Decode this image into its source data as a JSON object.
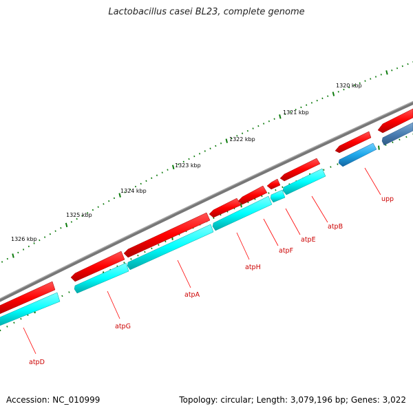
{
  "title": "Lactobacillus casei BL23, complete genome",
  "footer": {
    "accession": "Accession: NC_010999",
    "summary": "Topology: circular; Length: 3,079,196 bp; Genes: 3,022"
  },
  "colors": {
    "backbone": "#777777",
    "gene_red": "#ff0000",
    "gene_red_dark": "#b30000",
    "cds_cyan": "#00ffff",
    "cds_cyan_dark": "#00a0a0",
    "cds_blue": "#1ea7ea",
    "cds_blue_dark": "#1565a0",
    "cds_steel": "#4b7fb3",
    "tick": "#0b7a0b",
    "label": "#cc0000"
  },
  "ruler": [
    {
      "label": "1320 kbp"
    },
    {
      "label": "1321 kbp"
    },
    {
      "label": "1322 kbp"
    },
    {
      "label": "1323 kbp"
    },
    {
      "label": "1324 kbp"
    },
    {
      "label": "1325 kbp"
    },
    {
      "label": "1326 kbp"
    }
  ],
  "genes": [
    {
      "name": "upp"
    },
    {
      "name": "atpB"
    },
    {
      "name": "atpE"
    },
    {
      "name": "atpF"
    },
    {
      "name": "atpH"
    },
    {
      "name": "atpA"
    },
    {
      "name": "atpG"
    },
    {
      "name": "atpD"
    }
  ]
}
